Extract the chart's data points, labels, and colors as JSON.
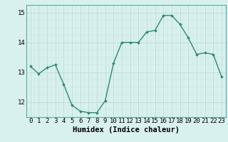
{
  "x": [
    0,
    1,
    2,
    3,
    4,
    5,
    6,
    7,
    8,
    9,
    10,
    11,
    12,
    13,
    14,
    15,
    16,
    17,
    18,
    19,
    20,
    21,
    22,
    23
  ],
  "y": [
    13.2,
    12.95,
    13.15,
    13.25,
    12.6,
    11.9,
    11.7,
    11.65,
    11.65,
    12.05,
    13.3,
    14.0,
    14.0,
    14.0,
    14.35,
    14.4,
    14.9,
    14.9,
    14.6,
    14.15,
    13.6,
    13.65,
    13.6,
    12.85
  ],
  "line_color": "#2d8b72",
  "marker": "D",
  "markersize": 2.0,
  "linewidth": 1.0,
  "xlabel": "Humidex (Indice chaleur)",
  "xlabel_fontsize": 7.5,
  "ylim": [
    11.5,
    15.25
  ],
  "yticks": [
    12,
    13,
    14,
    15
  ],
  "xticks": [
    0,
    1,
    2,
    3,
    4,
    5,
    6,
    7,
    8,
    9,
    10,
    11,
    12,
    13,
    14,
    15,
    16,
    17,
    18,
    19,
    20,
    21,
    22,
    23
  ],
  "xtick_labels": [
    "0",
    "1",
    "2",
    "3",
    "4",
    "5",
    "6",
    "7",
    "8",
    "9",
    "10",
    "11",
    "12",
    "13",
    "14",
    "15",
    "16",
    "17",
    "18",
    "19",
    "20",
    "21",
    "22",
    "23"
  ],
  "bg_color": "#d8f0ee",
  "grid_color_major": "#b8d8d4",
  "grid_color_minor": "#c8e4e0",
  "tick_fontsize": 6.5,
  "spine_color": "#5aada0"
}
